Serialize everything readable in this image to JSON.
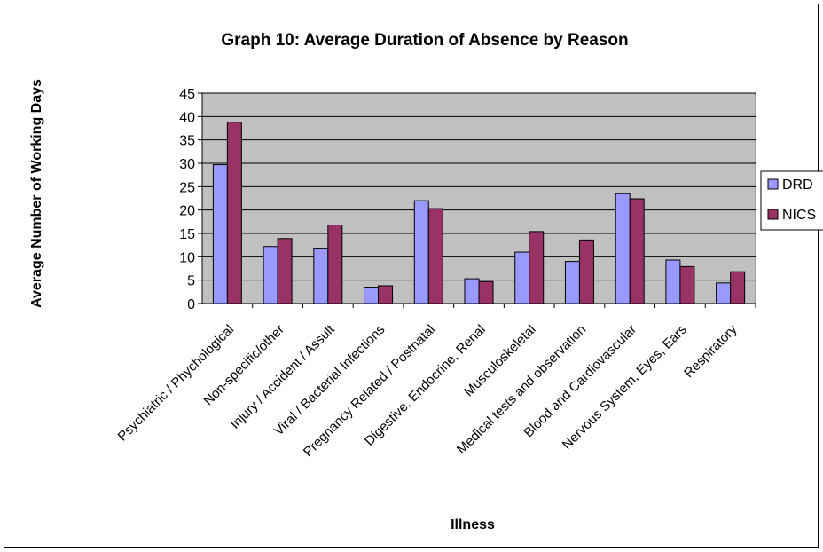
{
  "chart_data": {
    "type": "bar",
    "title": "Graph 10: Average Duration of Absence by Reason",
    "xlabel": "Illness",
    "ylabel": "Average Number of Working Days",
    "ylim": [
      0,
      45
    ],
    "yticks": [
      0,
      5,
      10,
      15,
      20,
      25,
      30,
      35,
      40,
      45
    ],
    "grid": true,
    "legend_position": "right",
    "categories": [
      "Psychiatric / Phychological",
      "Non-specific/other",
      "Injury / Accident / Assult",
      "Viral / Bacterial Infections",
      "Pregnancy Related / Postnatal",
      "Digestive, Endocrine, Renal",
      "Musculoskeletal",
      "Medical tests and observation",
      "Blood and Cardiovascular",
      "Nervous System, Eyes, Ears",
      "Respiratory"
    ],
    "series": [
      {
        "name": "DRD",
        "color": "#9999ff",
        "values": [
          29.7,
          12.2,
          11.7,
          3.5,
          22.0,
          5.3,
          11.0,
          9.0,
          23.5,
          9.3,
          4.4
        ]
      },
      {
        "name": "NICS",
        "color": "#993366",
        "values": [
          38.8,
          13.9,
          16.8,
          3.8,
          20.3,
          4.7,
          15.4,
          13.6,
          22.4,
          7.9,
          6.8
        ]
      }
    ],
    "plot_background": "#c0c0c0"
  }
}
